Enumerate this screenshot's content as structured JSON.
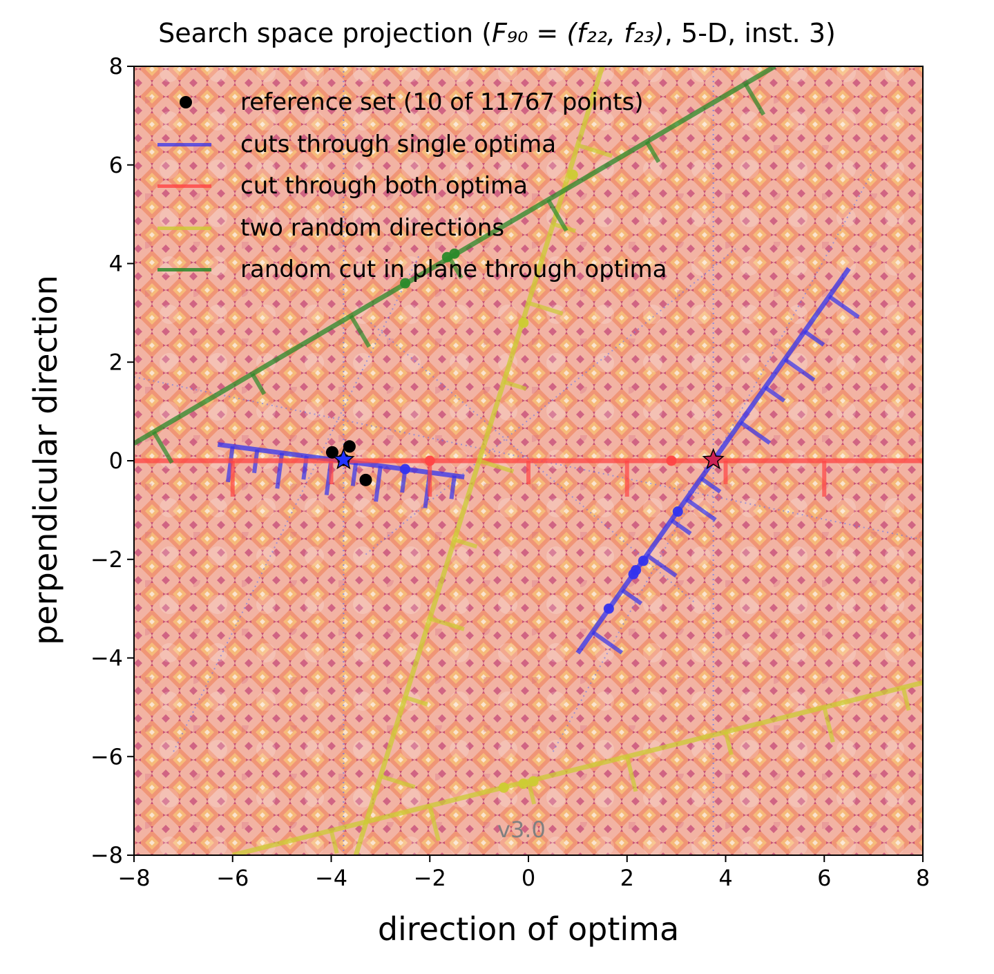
{
  "chart_data": {
    "type": "line",
    "title_prefix": "Search space projection (",
    "title_math": "F₉₀ = (f₂₂, f₂₃)",
    "title_suffix": ", 5-D, inst. 3)",
    "xlabel": "direction of optima",
    "ylabel": "perpendicular direction",
    "xlim": [
      -8,
      8
    ],
    "ylim": [
      -8,
      8
    ],
    "xticks": [
      -8,
      -6,
      -4,
      -2,
      0,
      2,
      4,
      6,
      8
    ],
    "yticks": [
      -8,
      -6,
      -4,
      -2,
      0,
      2,
      4,
      6,
      8
    ],
    "version_label": "v3.0",
    "legend_position": "upper-left",
    "legend": [
      {
        "label": "reference set (10 of 11767 points)",
        "marker": "dot",
        "color": "#000000"
      },
      {
        "label": "cuts through single optima",
        "marker": "line",
        "color": "#3333ee"
      },
      {
        "label": "cut through both optima",
        "marker": "line",
        "color": "#ff4444"
      },
      {
        "label": "two random directions",
        "marker": "line",
        "color": "#cccc33"
      },
      {
        "label": "random cut in plane through optima",
        "marker": "line",
        "color": "#2a8a2a"
      }
    ],
    "optima": [
      {
        "x": -3.75,
        "y": 0.02,
        "color": "#2233ff"
      },
      {
        "x": 3.75,
        "y": 0.02,
        "color": "#cc2255"
      }
    ],
    "reference_set": [
      {
        "x": -3.98,
        "y": 0.17
      },
      {
        "x": -3.63,
        "y": 0.29
      },
      {
        "x": -3.3,
        "y": -0.39
      },
      {
        "x": -3.75,
        "y": 0.02
      }
    ],
    "series": [
      {
        "name": "cuts through single optima",
        "color": "#3333ee",
        "segments": [
          {
            "x": [
              -6.3,
              -1.3
            ],
            "y": [
              0.33,
              -0.33
            ],
            "ticks": [
              -6.0,
              -5.5,
              -5.0,
              -4.5,
              -4.0,
              -3.5,
              -3.0,
              -2.5,
              -2.0,
              -1.5
            ],
            "points": [
              {
                "x": -2.5,
                "y": -0.17
              }
            ]
          },
          {
            "x": [
              1.0,
              6.5
            ],
            "y": [
              -3.9,
              3.9
            ],
            "ticks": [
              1.3,
              1.9,
              2.4,
              2.9,
              3.2,
              3.5,
              4.3,
              4.8,
              5.2,
              5.6,
              6.1
            ],
            "points": [
              {
                "x": 1.63,
                "y": -3.0
              },
              {
                "x": 2.13,
                "y": -2.3
              },
              {
                "x": 2.18,
                "y": -2.22
              },
              {
                "x": 2.33,
                "y": -2.03
              },
              {
                "x": 3.03,
                "y": -1.03
              }
            ]
          }
        ]
      },
      {
        "name": "cut through both optima",
        "color": "#ff4444",
        "segments": [
          {
            "x": [
              -8,
              8
            ],
            "y": [
              0,
              0
            ],
            "ticks": [
              -6,
              -4,
              -2,
              0,
              2,
              4,
              6
            ],
            "points": [
              {
                "x": -2.0,
                "y": 0.0
              },
              {
                "x": 2.9,
                "y": 0.0
              }
            ]
          }
        ]
      },
      {
        "name": "two random directions",
        "color": "#cccc33",
        "segments": [
          {
            "x": [
              -3.5,
              1.5
            ],
            "y": [
              -8.0,
              8.0
            ],
            "ticks": [
              -3.0,
              -2.5,
              -2.0,
              -1.5,
              -1.0,
              -0.5,
              0.0,
              0.5,
              1.0
            ],
            "points": [
              {
                "x": -0.1,
                "y": 2.8
              },
              {
                "x": 0.9,
                "y": 5.8
              }
            ]
          },
          {
            "x": [
              -6.0,
              8.0
            ],
            "y": [
              -8.0,
              -4.5
            ],
            "ticks": [
              -6.0,
              -4.0,
              -2.0,
              0.0,
              2.0,
              4.0,
              6.0,
              7.6
            ],
            "points": [
              {
                "x": -0.5,
                "y": -6.63
              },
              {
                "x": -0.1,
                "y": -6.55
              },
              {
                "x": 0.1,
                "y": -6.5
              }
            ]
          }
        ]
      },
      {
        "name": "random cut in plane through optima",
        "color": "#2a8a2a",
        "segments": [
          {
            "x": [
              -8.0,
              5.0
            ],
            "y": [
              0.35,
              8.0
            ],
            "ticks": [
              -7.6,
              -5.6,
              -3.6,
              -1.6,
              0.4,
              2.4,
              4.4
            ],
            "points": [
              {
                "x": -2.5,
                "y": 3.6
              },
              {
                "x": -1.65,
                "y": 4.13
              },
              {
                "x": -1.5,
                "y": 4.2
              }
            ]
          }
        ]
      }
    ]
  }
}
